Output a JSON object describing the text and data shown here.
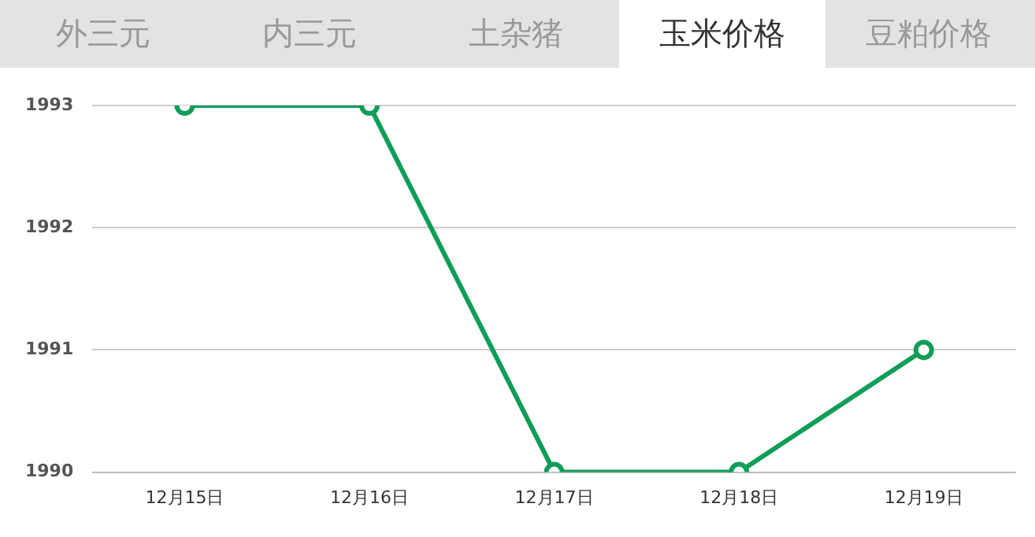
{
  "chart_data": {
    "type": "line",
    "title": "玉米价格",
    "annotations": [
      "外三元",
      "内三元",
      "土杂猪",
      "豆粕价格"
    ],
    "categories": [
      "12月15日",
      "12月16日",
      "12月17日",
      "12月18日",
      "12月19日"
    ],
    "series": [
      {
        "color": "#0f9d58",
        "values": [
          1993,
          1993,
          1990,
          1990,
          1991
        ]
      }
    ],
    "ylim": [
      1990,
      1993
    ],
    "yticks": [
      1990,
      1991,
      1992,
      1993
    ],
    "grid": "y",
    "legend": false,
    "marker": "circle",
    "line_style": "solid"
  }
}
